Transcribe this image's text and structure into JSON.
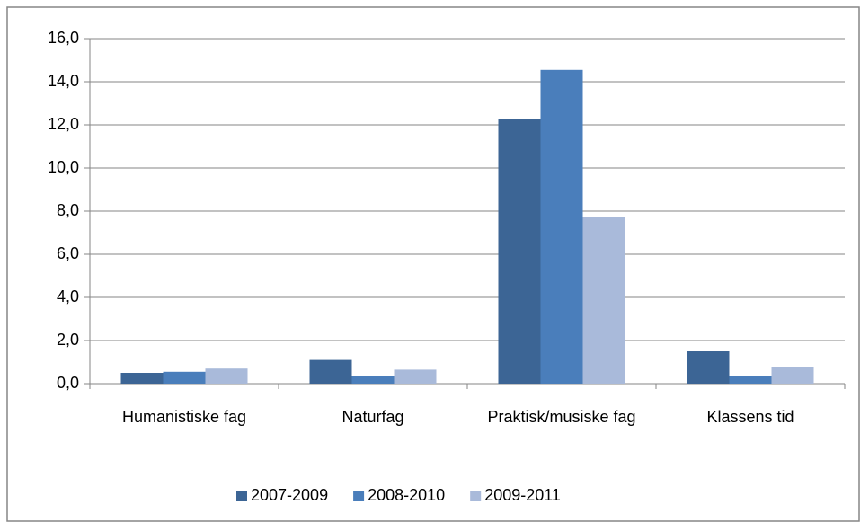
{
  "chart_data": {
    "type": "bar",
    "categories": [
      "Humanistiske fag",
      "Naturfag",
      "Praktisk/musiske fag",
      "Klassens tid"
    ],
    "series": [
      {
        "name": "2007-2009",
        "color": "#3c6595",
        "values": [
          0.5,
          1.1,
          12.25,
          1.5
        ]
      },
      {
        "name": "2008-2010",
        "color": "#4a7ebb",
        "values": [
          0.55,
          0.35,
          14.55,
          0.35
        ]
      },
      {
        "name": "2009-2011",
        "color": "#a9bada",
        "values": [
          0.7,
          0.65,
          7.75,
          0.75
        ]
      }
    ],
    "ylim": [
      0,
      16
    ],
    "yticks": [
      {
        "value": 0,
        "label": "0,0"
      },
      {
        "value": 2,
        "label": "2,0"
      },
      {
        "value": 4,
        "label": "4,0"
      },
      {
        "value": 6,
        "label": "6,0"
      },
      {
        "value": 8,
        "label": "8,0"
      },
      {
        "value": 10,
        "label": "10,0"
      },
      {
        "value": 12,
        "label": "12,0"
      },
      {
        "value": 14,
        "label": "14,0"
      },
      {
        "value": 16,
        "label": "16,0"
      }
    ],
    "grid": true,
    "legend": "bottom"
  }
}
